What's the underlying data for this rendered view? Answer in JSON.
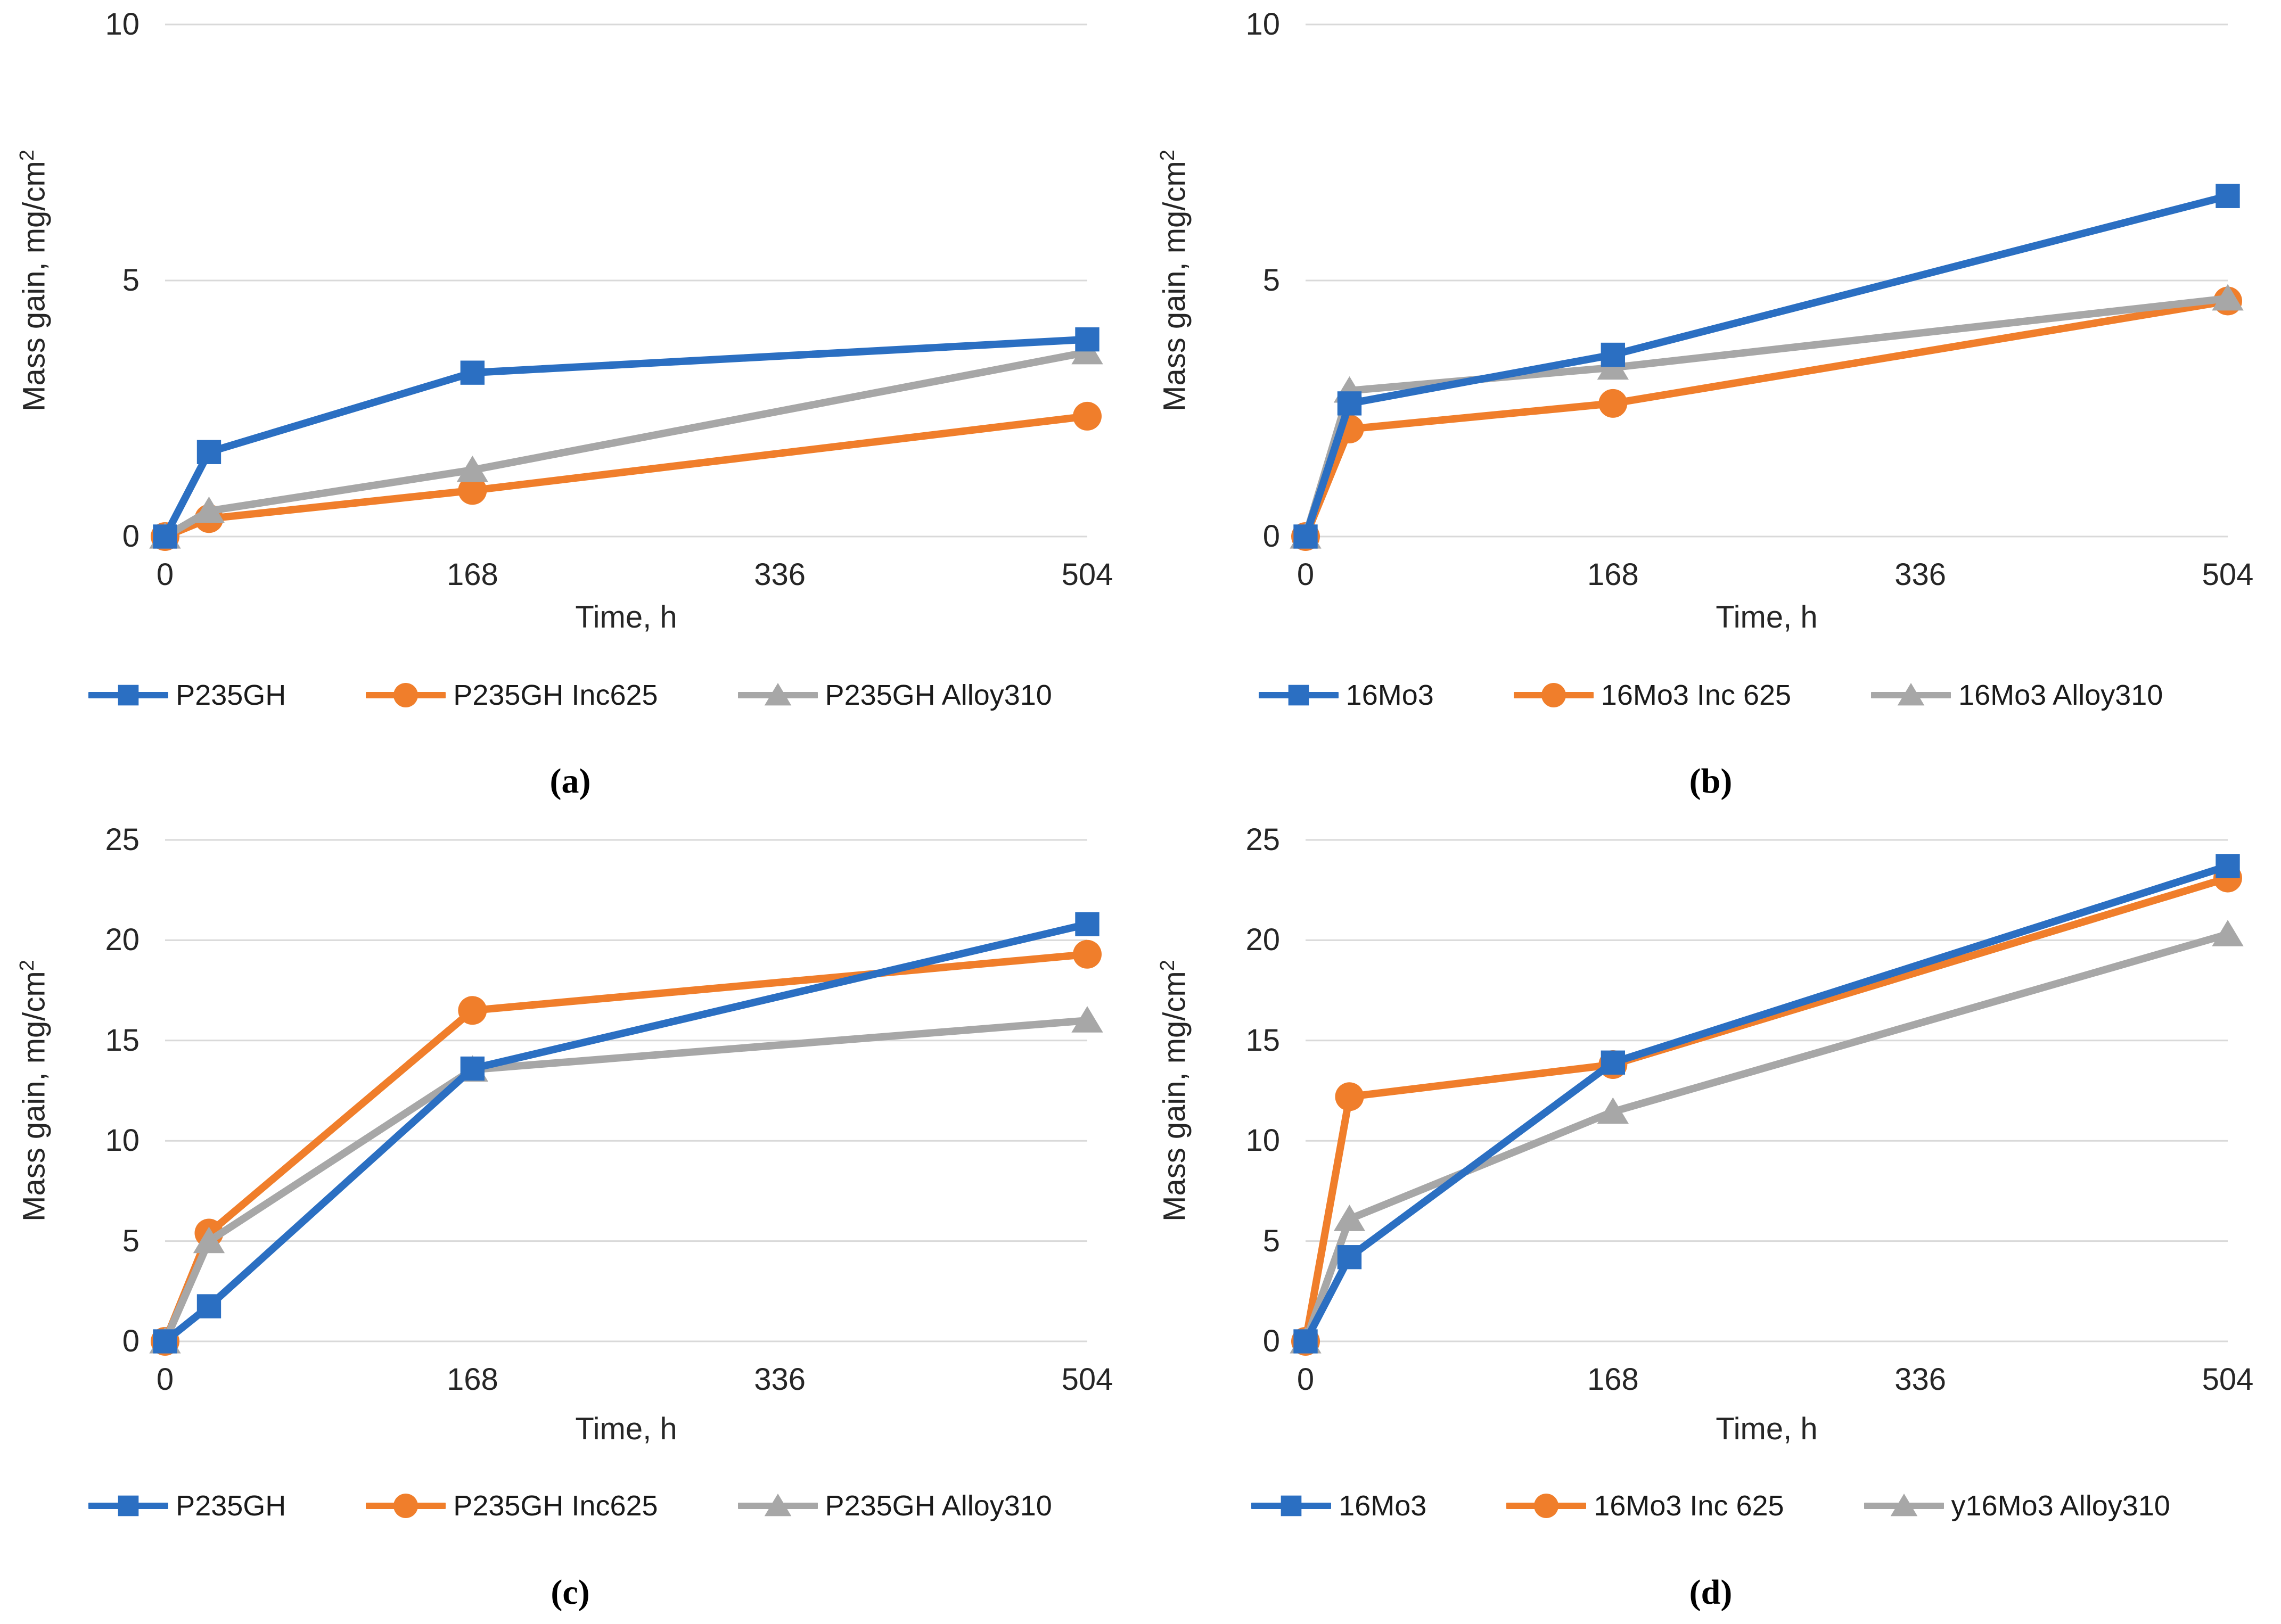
{
  "figure": {
    "xlabel": "Time, h",
    "ylabel": "Mass gain, mg/cm",
    "ylabel_sup": "2",
    "colors": {
      "blue": "#2B6FC2",
      "orange": "#F07E2B",
      "gray": "#A7A7A7",
      "grid": "#D9D9D9",
      "tick_text": "#262626",
      "legend_text": "#1A1A1A"
    }
  },
  "chart_data": [
    {
      "type": "line",
      "id": "a",
      "caption": "(a)",
      "xlabel": "Time, h",
      "ylabel": "Mass gain, mg/cm2",
      "xlim": [
        0,
        504
      ],
      "ylim": [
        0,
        10
      ],
      "xticks": [
        0,
        168,
        336,
        504
      ],
      "yticks": [
        0,
        5,
        10
      ],
      "grid": "horizontal",
      "legend_position": "bottom",
      "x": [
        0,
        24,
        168,
        504
      ],
      "series": [
        {
          "name": "P235GH",
          "color_key": "blue",
          "marker": "square",
          "values": [
            0,
            1.65,
            3.2,
            3.85
          ]
        },
        {
          "name": "P235GH Inc625",
          "color_key": "orange",
          "marker": "circle",
          "values": [
            0,
            0.35,
            0.9,
            2.35
          ]
        },
        {
          "name": "P235GH Alloy310",
          "color_key": "gray",
          "marker": "triangle",
          "values": [
            0,
            0.5,
            1.3,
            3.6
          ]
        }
      ]
    },
    {
      "type": "line",
      "id": "b",
      "caption": "(b)",
      "xlabel": "Time, h",
      "ylabel": "Mass gain, mg/cm2",
      "xlim": [
        0,
        504
      ],
      "ylim": [
        0,
        10
      ],
      "xticks": [
        0,
        168,
        336,
        504
      ],
      "yticks": [
        0,
        5,
        10
      ],
      "grid": "horizontal",
      "legend_position": "bottom",
      "x": [
        0,
        24,
        168,
        504
      ],
      "series": [
        {
          "name": "16Mo3",
          "color_key": "blue",
          "marker": "square",
          "values": [
            0,
            2.6,
            3.55,
            6.65
          ]
        },
        {
          "name": "16Mo3 Inc 625",
          "color_key": "orange",
          "marker": "circle",
          "values": [
            0,
            2.1,
            2.6,
            4.6
          ]
        },
        {
          "name": "16Mo3 Alloy310",
          "color_key": "gray",
          "marker": "triangle",
          "values": [
            0,
            2.85,
            3.3,
            4.65
          ]
        }
      ]
    },
    {
      "type": "line",
      "id": "c",
      "caption": "(c)",
      "xlabel": "Time, h",
      "ylabel": "Mass gain, mg/cm2",
      "xlim": [
        0,
        504
      ],
      "ylim": [
        0,
        25
      ],
      "xticks": [
        0,
        168,
        336,
        504
      ],
      "yticks": [
        0,
        5,
        10,
        15,
        20,
        25
      ],
      "grid": "horizontal",
      "legend_position": "bottom",
      "x": [
        0,
        24,
        168,
        504
      ],
      "series": [
        {
          "name": "P235GH",
          "color_key": "blue",
          "marker": "square",
          "values": [
            0,
            1.75,
            13.6,
            20.8
          ]
        },
        {
          "name": "P235GH Inc625",
          "color_key": "orange",
          "marker": "circle",
          "values": [
            0,
            5.4,
            16.5,
            19.3
          ]
        },
        {
          "name": "P235GH Alloy310",
          "color_key": "gray",
          "marker": "triangle",
          "values": [
            0,
            5.0,
            13.55,
            16.0
          ]
        }
      ]
    },
    {
      "type": "line",
      "id": "d",
      "caption": "(d)",
      "xlabel": "Time, h",
      "ylabel": "Mass gain, mg/cm2",
      "xlim": [
        0,
        504
      ],
      "ylim": [
        0,
        25
      ],
      "xticks": [
        0,
        168,
        336,
        504
      ],
      "yticks": [
        0,
        5,
        10,
        15,
        20,
        25
      ],
      "grid": "horizontal",
      "legend_position": "bottom",
      "x": [
        0,
        24,
        168,
        504
      ],
      "series": [
        {
          "name": "16Mo3",
          "color_key": "blue",
          "marker": "square",
          "values": [
            0,
            4.2,
            13.9,
            23.7
          ]
        },
        {
          "name": "16Mo3 Inc 625",
          "color_key": "orange",
          "marker": "circle",
          "values": [
            0,
            12.2,
            13.8,
            23.1
          ]
        },
        {
          "name": "y16Mo3 Alloy310",
          "color_key": "gray",
          "marker": "triangle",
          "values": [
            0,
            6.1,
            11.45,
            20.3
          ]
        }
      ]
    }
  ]
}
